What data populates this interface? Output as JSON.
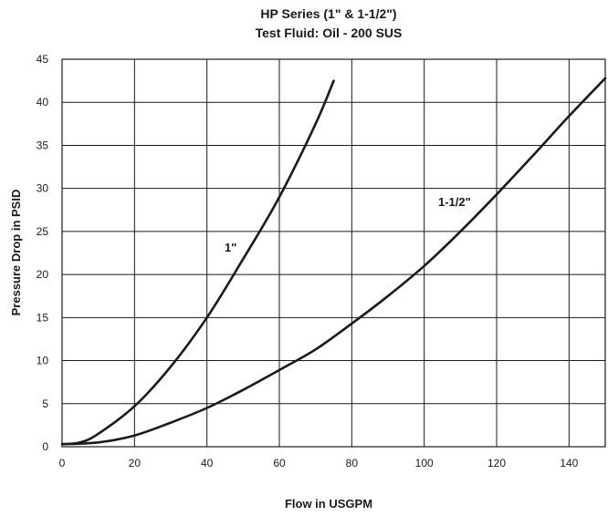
{
  "chart_data": {
    "type": "line",
    "title": "HP Series (1\" & 1-1/2\")",
    "subtitle": "Test Fluid: Oil - 200 SUS",
    "xlabel": "Flow in USGPM",
    "ylabel": "Pressure Drop in PSID",
    "xlim": [
      0,
      150
    ],
    "ylim": [
      0,
      45
    ],
    "xticks": [
      0,
      20,
      40,
      60,
      80,
      100,
      120,
      140
    ],
    "yticks": [
      0,
      5,
      10,
      15,
      20,
      25,
      30,
      35,
      40,
      45
    ],
    "grid": true,
    "line_color": "#1a1a1a",
    "series": [
      {
        "name": "1\"",
        "x": [
          0,
          5,
          10,
          20,
          30,
          40,
          50,
          60,
          70,
          75
        ],
        "y": [
          0.3,
          0.5,
          1.5,
          4.7,
          9.3,
          15.0,
          21.8,
          29.0,
          37.5,
          42.5
        ]
      },
      {
        "name": "1-1/2\"",
        "x": [
          0,
          10,
          20,
          30,
          40,
          50,
          60,
          70,
          80,
          90,
          100,
          110,
          120,
          130,
          140,
          150
        ],
        "y": [
          0.3,
          0.5,
          1.3,
          2.8,
          4.5,
          6.6,
          8.9,
          11.3,
          14.3,
          17.5,
          21.0,
          25.0,
          29.3,
          33.8,
          38.4,
          42.8
        ]
      }
    ]
  }
}
